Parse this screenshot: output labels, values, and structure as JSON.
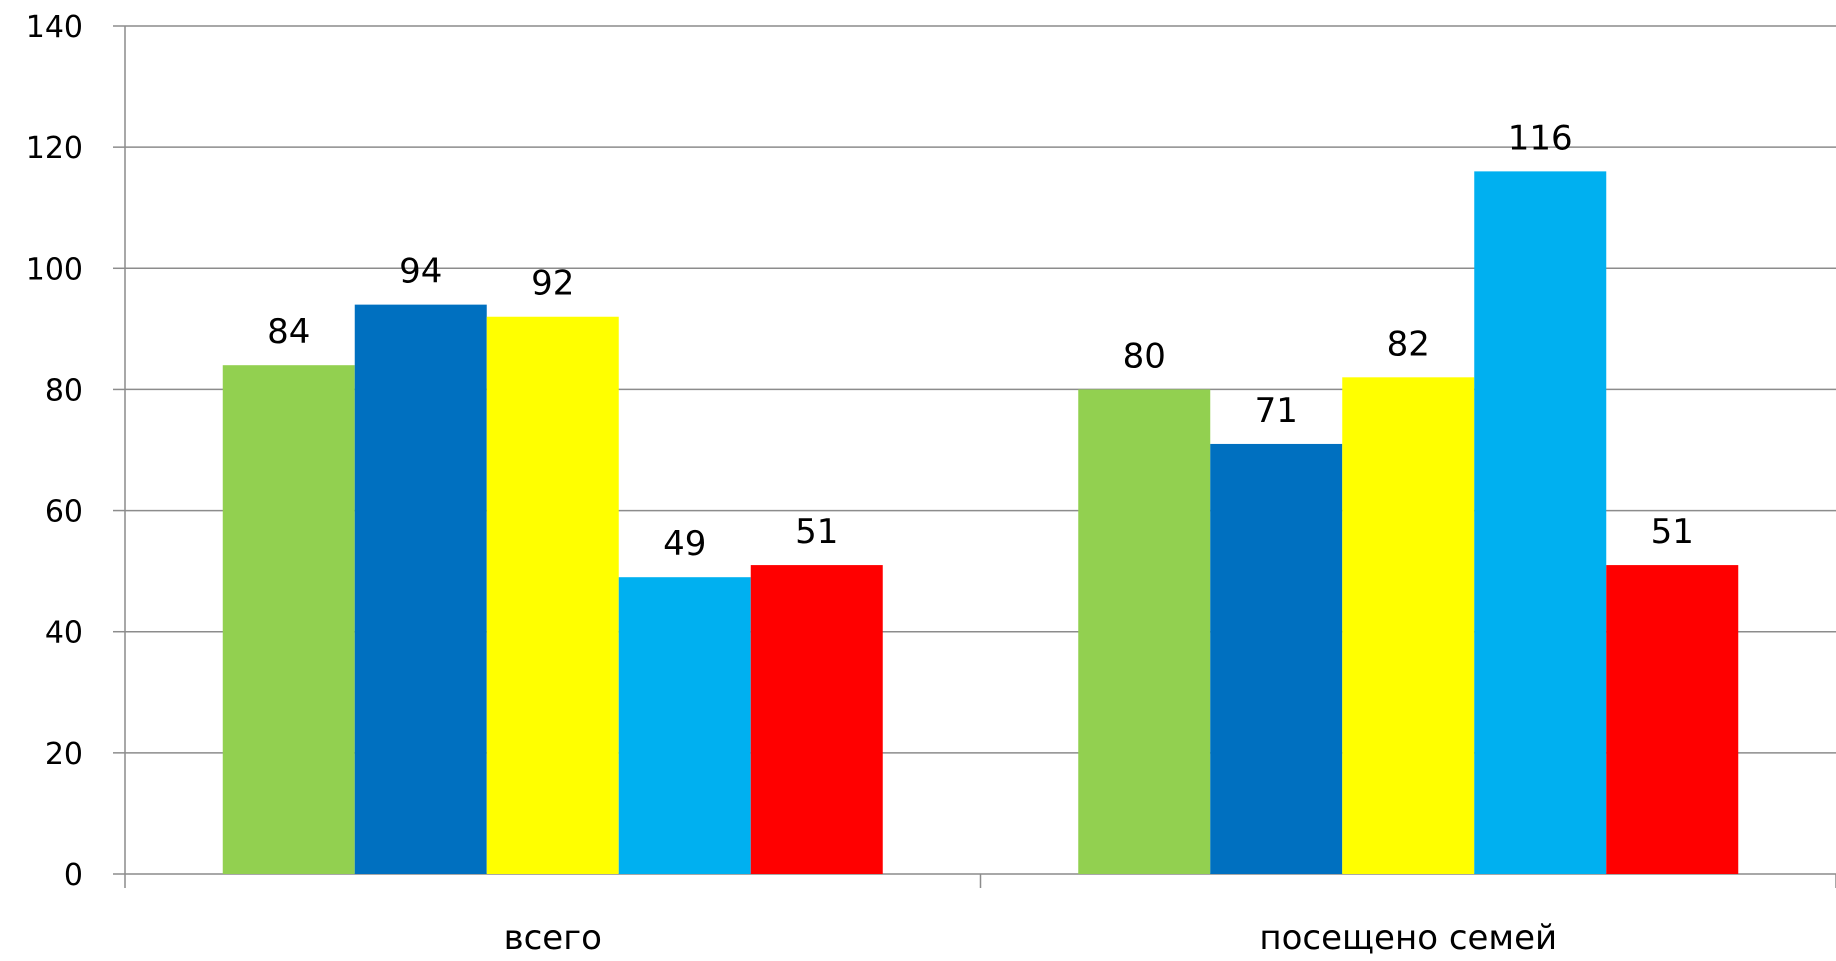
{
  "chart_data": {
    "type": "bar",
    "title": "",
    "xlabel": "",
    "ylabel": "",
    "categories": [
      "всего",
      "посещено семей"
    ],
    "ylim": [
      0,
      140
    ],
    "yticks": [
      0,
      20,
      40,
      60,
      80,
      100,
      120,
      140
    ],
    "grid": true,
    "legend": "none",
    "series": [
      {
        "color": "#92D050",
        "values": [
          84,
          80
        ]
      },
      {
        "color": "#0070C0",
        "values": [
          94,
          71
        ]
      },
      {
        "color": "#FFFF00",
        "values": [
          92,
          82
        ]
      },
      {
        "color": "#00B0F0",
        "values": [
          49,
          116
        ]
      },
      {
        "color": "#FF0000",
        "values": [
          51,
          51
        ]
      }
    ],
    "data_labels": true
  }
}
